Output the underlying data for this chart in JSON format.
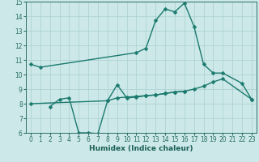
{
  "xlabel": "Humidex (Indice chaleur)",
  "bg_color": "#cce8e8",
  "grid_color": "#aacfcf",
  "line_color": "#1a7a6e",
  "xlim": [
    -0.5,
    23.5
  ],
  "ylim": [
    6,
    15
  ],
  "xticks": [
    0,
    1,
    2,
    3,
    4,
    5,
    6,
    7,
    8,
    9,
    10,
    11,
    12,
    13,
    14,
    15,
    16,
    17,
    18,
    19,
    20,
    21,
    22,
    23
  ],
  "yticks": [
    6,
    7,
    8,
    9,
    10,
    11,
    12,
    13,
    14,
    15
  ],
  "line1_x": [
    0,
    1,
    11,
    12,
    13,
    14,
    15,
    16,
    17,
    18,
    19,
    20,
    22,
    23
  ],
  "line1_y": [
    10.7,
    10.5,
    11.5,
    11.8,
    13.7,
    14.5,
    14.3,
    14.9,
    13.3,
    10.7,
    10.1,
    10.1,
    9.4,
    8.3
  ],
  "line2_x": [
    0,
    8,
    9,
    10,
    11,
    12,
    13,
    14,
    15,
    16,
    17,
    18,
    19,
    20,
    23
  ],
  "line2_y": [
    8.0,
    8.2,
    8.4,
    8.45,
    8.5,
    8.55,
    8.6,
    8.7,
    8.8,
    8.85,
    9.0,
    9.2,
    9.5,
    9.7,
    8.3
  ],
  "line3_x": [
    2,
    3,
    4,
    5,
    6,
    7,
    8,
    9,
    10,
    11,
    12,
    13,
    14,
    15,
    16
  ],
  "line3_y": [
    7.8,
    8.3,
    8.4,
    6.0,
    6.0,
    5.95,
    8.2,
    9.3,
    8.4,
    8.45,
    8.55,
    8.6,
    8.7,
    8.8,
    8.85
  ],
  "tick_color": "#2a6e68",
  "tick_fontsize": 5.5,
  "xlabel_fontsize": 6.5,
  "xlabel_color": "#1a5f57",
  "linewidth": 1.0,
  "markersize": 2.5
}
